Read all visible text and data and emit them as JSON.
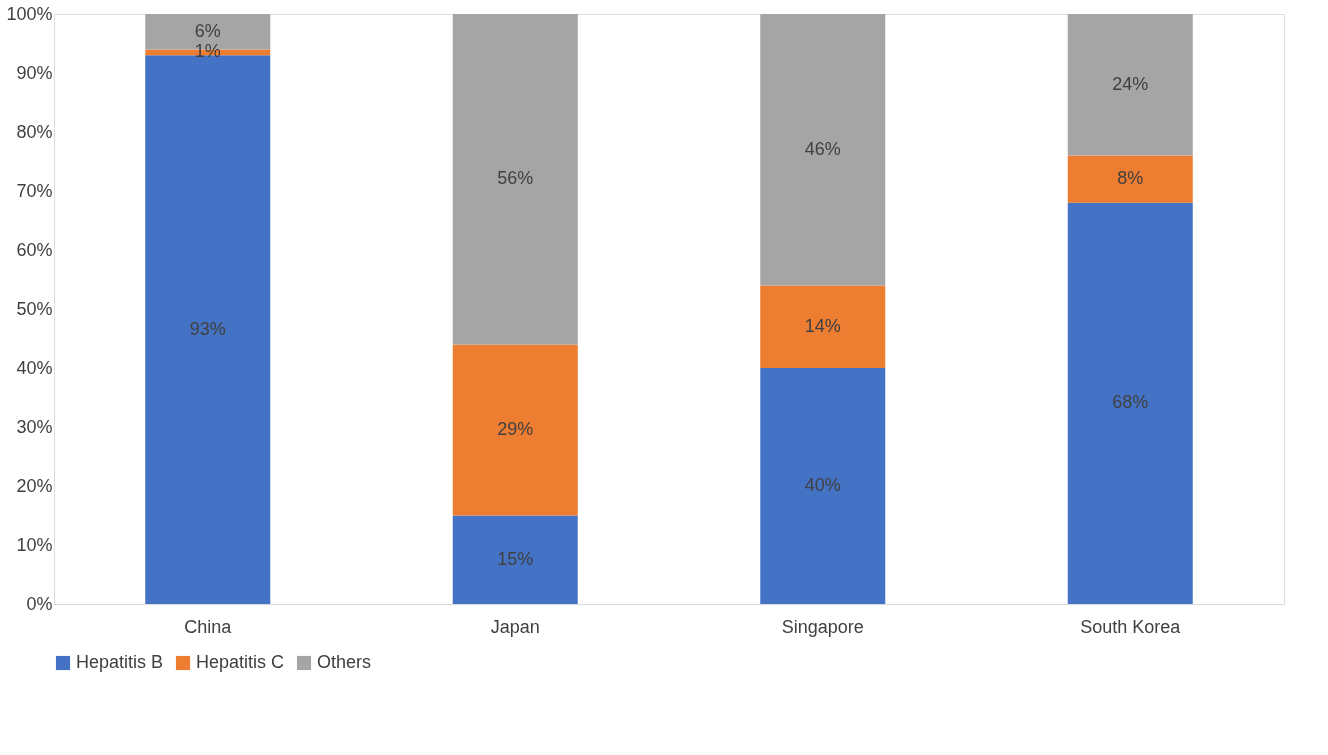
{
  "chart_data": {
    "type": "bar",
    "stacked": true,
    "categories": [
      "China",
      "Japan",
      "Singapore",
      "South Korea"
    ],
    "series": [
      {
        "name": "Hepatitis B",
        "color": "#4472c4",
        "values": [
          93,
          15,
          40,
          68
        ],
        "value_labels": [
          "93%",
          "15%",
          "40%",
          "68%"
        ]
      },
      {
        "name": "Hepatitis C",
        "color": "#ed7d31",
        "values": [
          1,
          29,
          14,
          8
        ],
        "value_labels": [
          "1%",
          "29%",
          "14%",
          "8%"
        ]
      },
      {
        "name": "Others",
        "color": "#a5a5a5",
        "values": [
          6,
          56,
          46,
          24
        ],
        "value_labels": [
          "6%",
          "56%",
          "46%",
          "24%"
        ]
      }
    ],
    "ylim": [
      0,
      100
    ],
    "yticks": [
      {
        "value": 0,
        "label": "0%"
      },
      {
        "value": 10,
        "label": "10%"
      },
      {
        "value": 20,
        "label": "20%"
      },
      {
        "value": 30,
        "label": "30%"
      },
      {
        "value": 40,
        "label": "40%"
      },
      {
        "value": 50,
        "label": "50%"
      },
      {
        "value": 60,
        "label": "60%"
      },
      {
        "value": 70,
        "label": "70%"
      },
      {
        "value": 80,
        "label": "80%"
      },
      {
        "value": 90,
        "label": "90%"
      },
      {
        "value": 100,
        "label": "100%"
      }
    ],
    "grid": false,
    "legend": "bottom"
  }
}
